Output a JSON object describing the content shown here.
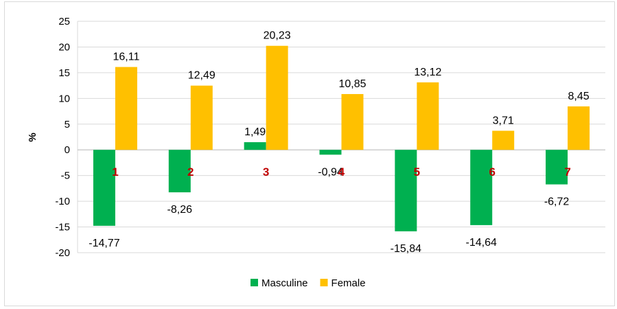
{
  "chart_data": {
    "type": "bar",
    "categories": [
      "1",
      "2",
      "3",
      "4",
      "5",
      "6",
      "7"
    ],
    "series": [
      {
        "name": "Masculine",
        "color": "#00b050",
        "values": [
          -14.77,
          -8.26,
          1.49,
          -0.94,
          -15.84,
          -14.64,
          -6.72
        ],
        "labels": [
          "-14,77",
          "-8,26",
          "1,49",
          "-0,94",
          "-15,84",
          "-14,64",
          "-6,72"
        ]
      },
      {
        "name": "Female",
        "color": "#ffc000",
        "values": [
          16.11,
          12.49,
          20.23,
          10.85,
          13.12,
          3.71,
          8.45
        ],
        "labels": [
          "16,11",
          "12,49",
          "20,23",
          "10,85",
          "13,12",
          "3,71",
          "8,45"
        ]
      }
    ],
    "ylabel": "%",
    "ylim": [
      -20,
      25
    ],
    "yticks": [
      25,
      20,
      15,
      10,
      5,
      0,
      -5,
      -10,
      -15,
      -20
    ],
    "grid": true,
    "legend": "bottom",
    "category_label_color": "#c00000"
  }
}
